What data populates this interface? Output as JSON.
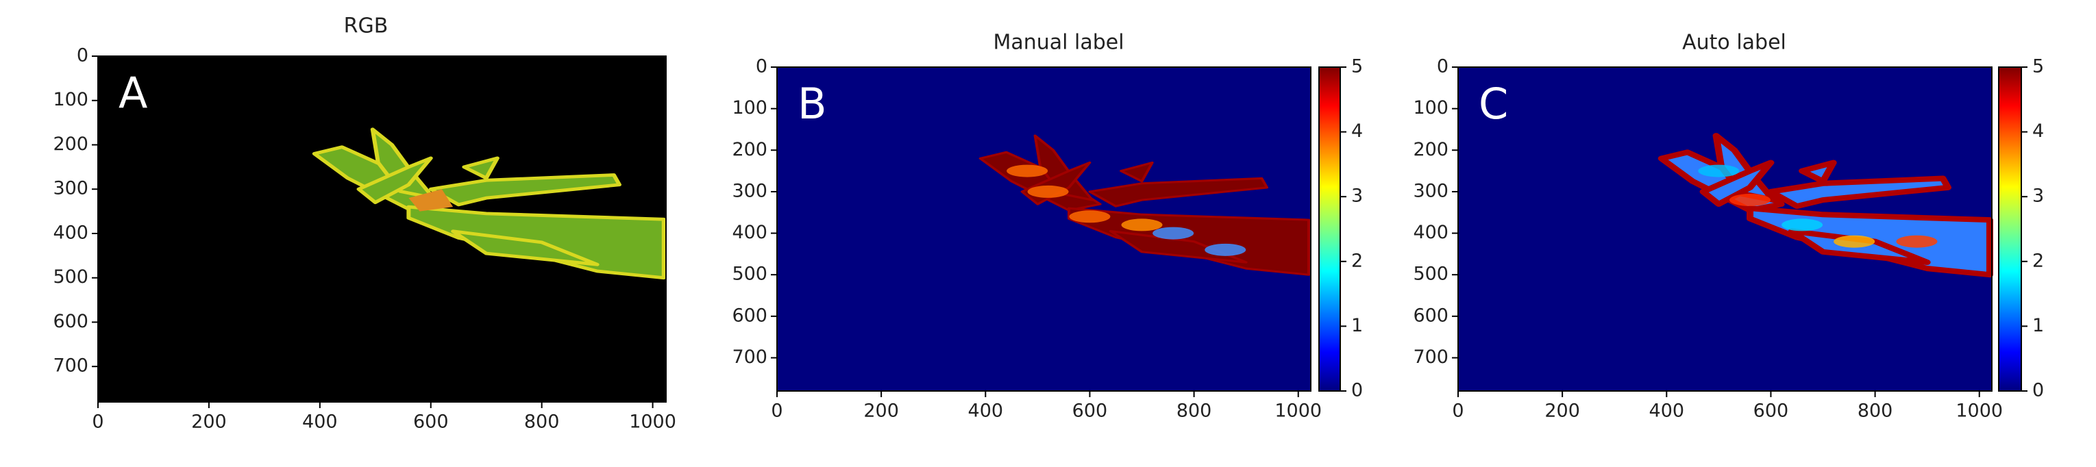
{
  "chart_data": [
    {
      "type": "image",
      "title": "RGB",
      "panel_label": "A",
      "xlim": [
        0,
        1024
      ],
      "ylim": [
        780,
        0
      ],
      "xticks": [
        0,
        200,
        400,
        600,
        800,
        1000
      ],
      "yticks": [
        0,
        100,
        200,
        300,
        400,
        500,
        600,
        700
      ]
    },
    {
      "type": "image",
      "title": "Manual label",
      "panel_label": "B",
      "xlim": [
        0,
        1024
      ],
      "ylim": [
        780,
        0
      ],
      "xticks": [
        0,
        200,
        400,
        600,
        800,
        1000
      ],
      "yticks": [
        0,
        100,
        200,
        300,
        400,
        500,
        600,
        700
      ],
      "colormap": "jet",
      "colorbar": {
        "lim": [
          0,
          5
        ],
        "ticks": [
          0,
          1,
          2,
          3,
          4,
          5
        ]
      }
    },
    {
      "type": "image",
      "title": "Auto label",
      "panel_label": "C",
      "xlim": [
        0,
        1024
      ],
      "ylim": [
        780,
        0
      ],
      "xticks": [
        0,
        200,
        400,
        600,
        800,
        1000
      ],
      "yticks": [
        0,
        100,
        200,
        300,
        400,
        500,
        600,
        700
      ],
      "colormap": "jet",
      "colorbar": {
        "lim": [
          0,
          5
        ],
        "ticks": [
          0,
          1,
          2,
          3,
          4,
          5
        ]
      }
    }
  ]
}
